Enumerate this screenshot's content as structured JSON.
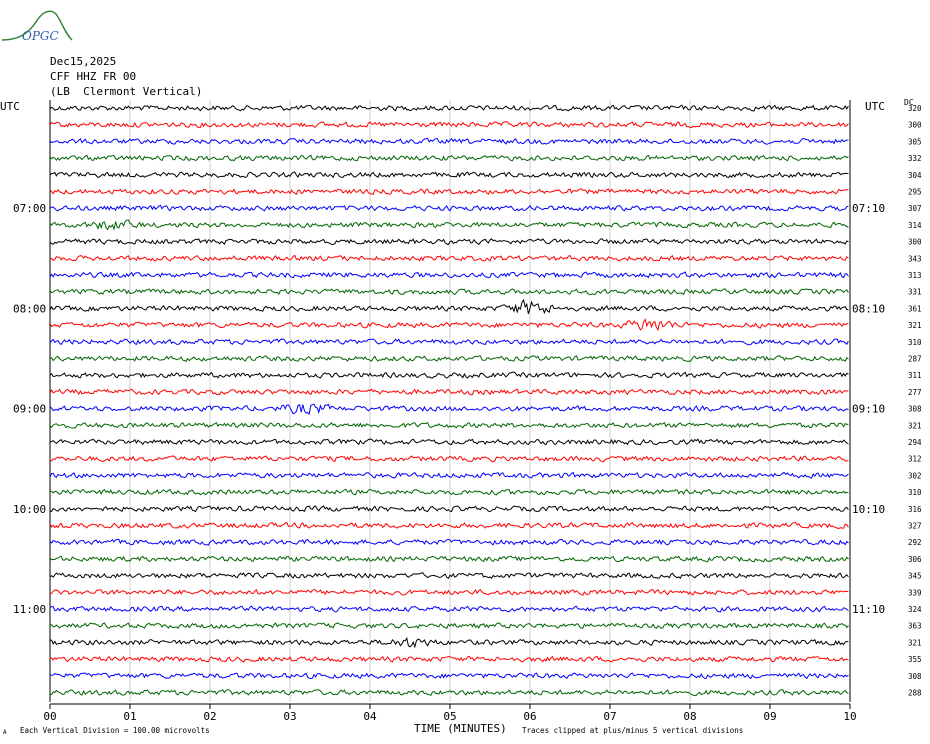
{
  "header": {
    "logo_text": "OPGC",
    "date": "Dec15,2025",
    "station": "CFF HHZ FR 00",
    "location": "(LB  Clermont Vertical)"
  },
  "left_label": "UTC",
  "right_label": "UTC",
  "dc_label": "DC",
  "xlabel": "TIME (MINUTES)",
  "footer": {
    "scale_note": "Each Vertical Division =  100.00 microvolts",
    "clip_note": "Traces clipped at plus/minus 5 vertical divisions",
    "corner_mark": "A"
  },
  "colors": {
    "trace_cycle": [
      "#000000",
      "#ff0000",
      "#0000ff",
      "#006400"
    ],
    "gridline": "#cfcfcf",
    "logo": "#2e7d32"
  },
  "chart_data": {
    "type": "line",
    "title": "",
    "xlabel": "TIME (MINUTES)",
    "xlim": [
      0,
      10
    ],
    "x_ticks": [
      "00",
      "01",
      "02",
      "03",
      "04",
      "05",
      "06",
      "07",
      "08",
      "09",
      "10"
    ],
    "left_hour_labels": [
      {
        "row": 6,
        "text": "07:00"
      },
      {
        "row": 12,
        "text": "08:00"
      },
      {
        "row": 18,
        "text": "09:00"
      },
      {
        "row": 24,
        "text": "10:00"
      },
      {
        "row": 30,
        "text": "11:00"
      }
    ],
    "right_hour_labels": [
      {
        "row": 6,
        "text": "07:10"
      },
      {
        "row": 12,
        "text": "08:10"
      },
      {
        "row": 18,
        "text": "09:10"
      },
      {
        "row": 24,
        "text": "10:10"
      },
      {
        "row": 30,
        "text": "11:10"
      }
    ],
    "dc_offsets": [
      320,
      300,
      305,
      332,
      304,
      295,
      307,
      314,
      300,
      343,
      313,
      331,
      361,
      321,
      310,
      287,
      311,
      277,
      308,
      321,
      294,
      312,
      302,
      310,
      316,
      327,
      292,
      306,
      345,
      339,
      324,
      363,
      321,
      355,
      308,
      288
    ],
    "events": [
      {
        "row": 12,
        "minute": 6.0,
        "amplitude": 2.5
      },
      {
        "row": 13,
        "minute": 7.5,
        "amplitude": 2.2
      },
      {
        "row": 18,
        "minute": 3.2,
        "amplitude": 1.6
      },
      {
        "row": 7,
        "minute": 0.8,
        "amplitude": 1.4
      },
      {
        "row": 32,
        "minute": 4.5,
        "amplitude": 1.4
      }
    ]
  }
}
